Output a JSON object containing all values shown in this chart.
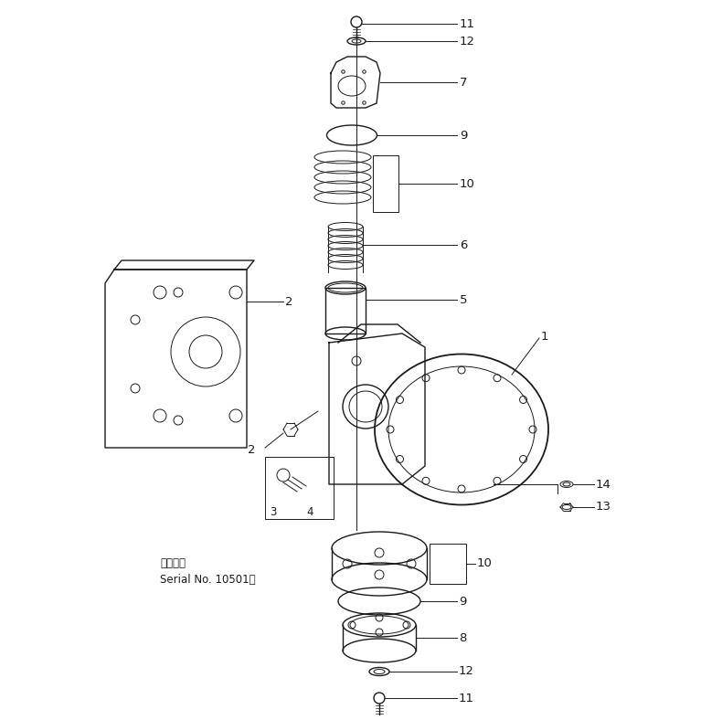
{
  "background_color": "#ffffff",
  "line_color": "#1a1a1a",
  "fig_width": 7.9,
  "fig_height": 7.88,
  "dpi": 100,
  "serial_text_line1": "適用号標",
  "serial_text_line2": "Serial No. 10501～",
  "label_fontsize": 9.5,
  "small_fontsize": 8.5
}
